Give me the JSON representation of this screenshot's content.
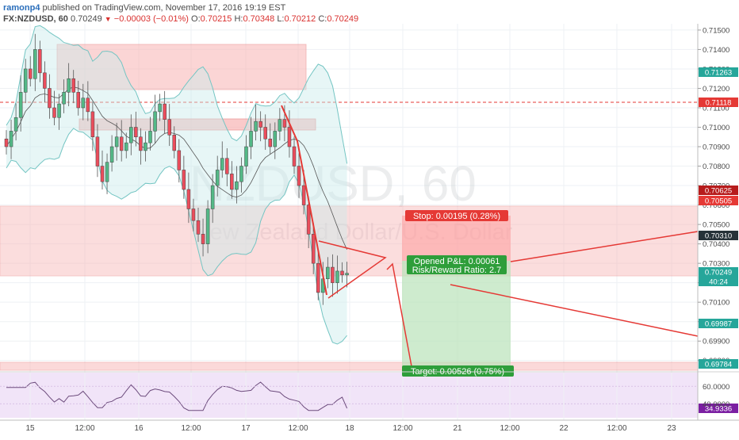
{
  "header": {
    "username": "ramonp4",
    "published": "published on TradingView.com, November 17, 2016 19:19 EST",
    "symbol": "FX:NZDUSD, 60",
    "last": "0.70249",
    "change": "−0.00003 (−0.01%)",
    "o_label": "O:",
    "o_val": "0.70215",
    "h_label": "H:",
    "h_val": "0.70348",
    "l_label": "L:",
    "l_val": "0.70212",
    "c_label": "C:",
    "c_val": "0.70249"
  },
  "watermark": {
    "line1": "NZDUSD, 60",
    "line2": "New Zealand Dollar/U.S. Dollar"
  },
  "price_axis": {
    "ticks": [
      "0.71500",
      "0.71400",
      "0.71300",
      "0.71200",
      "0.71100",
      "0.71000",
      "0.70900",
      "0.70800",
      "0.70700",
      "0.70600",
      "0.70500",
      "0.70400",
      "0.70300",
      "0.70200",
      "0.70100",
      "0.70000",
      "0.69900",
      "0.69800"
    ],
    "badges": [
      {
        "text": "0.71263",
        "color": "#26a69a"
      },
      {
        "text": "0.71118",
        "color": "#e53935"
      },
      {
        "text": "0.70625",
        "color": "#b71c1c"
      },
      {
        "text": "0.70505",
        "color": "#e53935"
      },
      {
        "text": "0.70310",
        "color": "#263238"
      },
      {
        "text": "0.70249",
        "color": "#26a69a"
      },
      {
        "text": "40:24",
        "color": "#26a69a"
      },
      {
        "text": "0.69987",
        "color": "#26a69a"
      },
      {
        "text": "0.69784",
        "color": "#26a69a"
      }
    ]
  },
  "rsi_axis": {
    "ticks": [
      "60.0000",
      "40.0000"
    ],
    "badge": {
      "text": "34.9336",
      "color": "#7b1fa2"
    }
  },
  "time_axis": [
    "15",
    "12:00",
    "16",
    "12:00",
    "17",
    "12:00",
    "18",
    "12:00",
    "21",
    "12:00",
    "22",
    "12:00",
    "23"
  ],
  "position": {
    "stop": "Stop: 0.00195 (0.28%)",
    "opened": "Opened P&L: 0.00061",
    "rr": "Risk/Reward Ratio: 2.7",
    "target": "Target: 0.00526 (0.75%)"
  },
  "colors": {
    "up": "#53b987",
    "down": "#eb4d5c",
    "zone": "#f5a0a0",
    "stop_zone": "#ffcccc",
    "target_zone": "#c8e6c9",
    "rsi_bg": "#ead7f5",
    "rsi_line": "#7d5a8c",
    "trend": "#e53935"
  },
  "chart_data": {
    "type": "candlestick",
    "symbol": "FX:NZDUSD",
    "interval": "60",
    "ylim": [
      0.6975,
      0.7152
    ],
    "last_bar": {
      "open": 0.70215,
      "high": 0.70348,
      "low": 0.70212,
      "close": 0.70249
    },
    "series_close": [
      0.709,
      0.7098,
      0.7105,
      0.7118,
      0.713,
      0.7125,
      0.714,
      0.7128,
      0.712,
      0.711,
      0.7105,
      0.7112,
      0.7118,
      0.7125,
      0.7118,
      0.711,
      0.7115,
      0.7108,
      0.7095,
      0.708,
      0.7072,
      0.7082,
      0.709,
      0.7095,
      0.7088,
      0.7092,
      0.71,
      0.7095,
      0.7088,
      0.7092,
      0.7098,
      0.7108,
      0.7112,
      0.7104,
      0.7096,
      0.7088,
      0.7078,
      0.7068,
      0.7058,
      0.7052,
      0.7045,
      0.704,
      0.7058,
      0.707,
      0.7078,
      0.7084,
      0.7076,
      0.7068,
      0.7072,
      0.708,
      0.709,
      0.7098,
      0.7103,
      0.71,
      0.7094,
      0.709,
      0.7098,
      0.7104,
      0.71,
      0.709,
      0.708,
      0.707,
      0.706,
      0.7045,
      0.703,
      0.7015,
      0.7022,
      0.7028,
      0.702,
      0.7026,
      0.7024,
      0.70249
    ],
    "levels": {
      "resistance": 0.71118,
      "stop": 0.70505,
      "entry": 0.7031,
      "target": 0.69784
    },
    "zones": [
      [
        0.714,
        0.7118
      ],
      [
        0.7103,
        0.71
      ],
      [
        0.7056,
        0.7025
      ],
      [
        0.698,
        0.6977
      ]
    ]
  }
}
